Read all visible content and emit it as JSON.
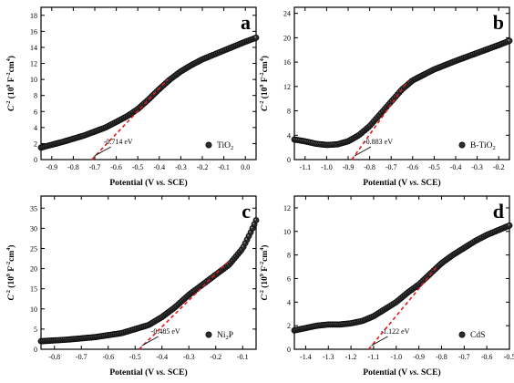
{
  "figure": {
    "x_axis_title": {
      "text": "Potential (V ",
      "italic": "vs.",
      "rest": " SCE)"
    },
    "y_axis_title": {
      "base": "C",
      "exp1": "-2",
      "mid": " (10",
      "exp2": "9",
      "rest": " F",
      "exp3": "-2",
      "unit": "cm",
      "exp4": "4",
      "close": ")"
    }
  },
  "chart_data": [
    {
      "panel": "a",
      "type": "scatter",
      "series": [
        {
          "name_main": "TiO",
          "name_sub": "2",
          "name_tail": ""
        }
      ],
      "legend_position": "bottom-right",
      "xlim": [
        -0.95,
        0.05
      ],
      "ylim": [
        0,
        19
      ],
      "x_ticks": [
        -0.9,
        -0.8,
        -0.7,
        -0.6,
        -0.5,
        -0.4,
        -0.3,
        -0.2,
        -0.1,
        0.0
      ],
      "x_tick_labels": [
        "-0.9",
        "-0.8",
        "-0.7",
        "-0.6",
        "-0.5",
        "-0.4",
        "-0.3",
        "-0.2",
        "-0.1",
        "0.0"
      ],
      "y_ticks": [
        0,
        2,
        4,
        6,
        8,
        10,
        12,
        14,
        16,
        18
      ],
      "curve": {
        "x": [
          -0.95,
          -0.85,
          -0.75,
          -0.65,
          -0.55,
          -0.5,
          -0.45,
          -0.4,
          -0.35,
          -0.3,
          -0.25,
          -0.2,
          -0.1,
          0.0,
          0.05
        ],
        "y": [
          1.5,
          2.2,
          3.0,
          4.0,
          5.4,
          6.3,
          7.5,
          8.8,
          10.0,
          11.0,
          11.8,
          12.5,
          13.6,
          14.7,
          15.2
        ]
      },
      "fit_line": {
        "x": [
          -0.714,
          -0.36
        ],
        "y": [
          0,
          10.0
        ]
      },
      "annotation": {
        "text": "-0.714 eV",
        "x": -0.714,
        "y": 0
      }
    },
    {
      "panel": "b",
      "type": "scatter",
      "series": [
        {
          "name_main": "B-TiO",
          "name_sub": "2",
          "name_tail": ""
        }
      ],
      "legend_position": "bottom-right",
      "xlim": [
        -1.15,
        -0.15
      ],
      "ylim": [
        0,
        25
      ],
      "x_ticks": [
        -1.1,
        -1.0,
        -0.9,
        -0.8,
        -0.7,
        -0.6,
        -0.5,
        -0.4,
        -0.3,
        -0.2
      ],
      "x_tick_labels": [
        "-1.1",
        "-1.0",
        "-0.9",
        "-0.8",
        "-0.7",
        "-0.6",
        "-0.5",
        "-0.4",
        "-0.3",
        "-0.2"
      ],
      "y_ticks": [
        0,
        4,
        8,
        12,
        16,
        20,
        24
      ],
      "curve": {
        "x": [
          -1.15,
          -1.1,
          -1.05,
          -1.0,
          -0.95,
          -0.9,
          -0.85,
          -0.8,
          -0.75,
          -0.7,
          -0.65,
          -0.6,
          -0.5,
          -0.4,
          -0.3,
          -0.2,
          -0.15
        ],
        "y": [
          3.3,
          3.0,
          2.6,
          2.4,
          2.5,
          3.0,
          4.0,
          5.5,
          7.5,
          9.5,
          11.5,
          13.0,
          14.8,
          16.2,
          17.5,
          18.8,
          19.5
        ]
      },
      "fit_line": {
        "x": [
          -0.883,
          -0.62
        ],
        "y": [
          0,
          13.0
        ]
      },
      "annotation": {
        "text": "-0.883 eV",
        "x": -0.883,
        "y": 0
      }
    },
    {
      "panel": "c",
      "type": "scatter",
      "series": [
        {
          "name_main": "Ni",
          "name_sub": "2",
          "name_tail": "P"
        }
      ],
      "legend_position": "bottom-right",
      "xlim": [
        -0.85,
        -0.05
      ],
      "ylim": [
        0,
        38
      ],
      "x_ticks": [
        -0.8,
        -0.7,
        -0.6,
        -0.5,
        -0.4,
        -0.3,
        -0.2,
        -0.1
      ],
      "x_tick_labels": [
        "-0.8",
        "-0.7",
        "-0.6",
        "-0.5",
        "-0.4",
        "-0.3",
        "-0.2",
        "-0.1"
      ],
      "y_ticks": [
        0,
        5,
        10,
        15,
        20,
        25,
        30,
        35
      ],
      "curve": {
        "x": [
          -0.85,
          -0.75,
          -0.65,
          -0.55,
          -0.5,
          -0.45,
          -0.4,
          -0.35,
          -0.3,
          -0.25,
          -0.2,
          -0.15,
          -0.1,
          -0.07,
          -0.05
        ],
        "y": [
          2.0,
          2.4,
          3.0,
          4.0,
          5.0,
          6.0,
          8.0,
          10.5,
          13.5,
          16.0,
          18.5,
          21.0,
          25.0,
          29.0,
          32.0
        ]
      },
      "fit_line": {
        "x": [
          -0.485,
          -0.15
        ],
        "y": [
          0,
          22.0
        ]
      },
      "annotation": {
        "text": "-0.485 eV",
        "x": -0.485,
        "y": 0
      }
    },
    {
      "panel": "d",
      "type": "scatter",
      "series": [
        {
          "name_main": "CdS",
          "name_sub": "",
          "name_tail": ""
        }
      ],
      "legend_position": "bottom-right",
      "xlim": [
        -1.45,
        -0.5
      ],
      "ylim": [
        0,
        13
      ],
      "x_ticks": [
        -1.4,
        -1.3,
        -1.2,
        -1.1,
        -1.0,
        -0.9,
        -0.8,
        -0.7,
        -0.6,
        -0.5
      ],
      "x_tick_labels": [
        "-1.4",
        "-1.3",
        "-1.2",
        "-1.1",
        "-1.0",
        "-0.9",
        "-0.8",
        "-0.7",
        "-0.6",
        "-0.5"
      ],
      "y_ticks": [
        0,
        2,
        4,
        6,
        8,
        10,
        12
      ],
      "curve": {
        "x": [
          -1.45,
          -1.4,
          -1.35,
          -1.3,
          -1.25,
          -1.2,
          -1.15,
          -1.1,
          -1.05,
          -1.0,
          -0.95,
          -0.9,
          -0.85,
          -0.8,
          -0.75,
          -0.7,
          -0.65,
          -0.6,
          -0.55,
          -0.5
        ],
        "y": [
          1.6,
          1.8,
          2.0,
          2.1,
          2.1,
          2.2,
          2.4,
          2.8,
          3.4,
          4.0,
          4.8,
          5.5,
          6.4,
          7.3,
          8.0,
          8.6,
          9.2,
          9.7,
          10.1,
          10.5
        ]
      },
      "fit_line": {
        "x": [
          -1.122,
          -0.82
        ],
        "y": [
          0,
          7.0
        ]
      },
      "annotation": {
        "text": "-1.122 eV",
        "x": -1.122,
        "y": 0
      }
    }
  ]
}
